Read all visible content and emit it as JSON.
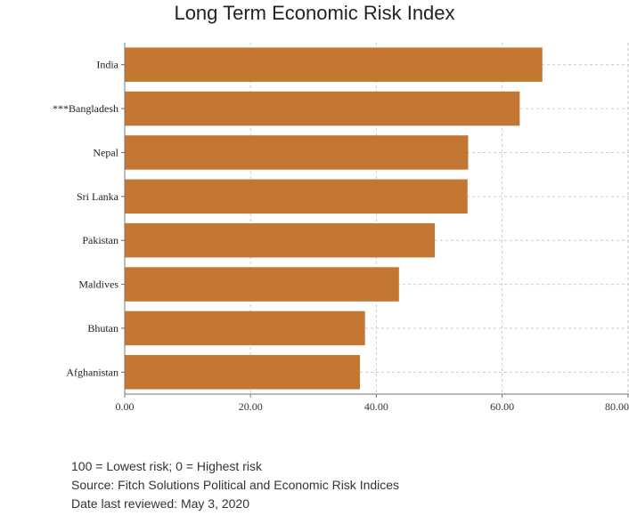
{
  "chart_data": {
    "type": "bar",
    "orientation": "horizontal",
    "title": "Long Term Economic Risk Index",
    "categories": [
      "India",
      "***Bangladesh",
      "Nepal",
      "Sri Lanka",
      "Pakistan",
      "Maldives",
      "Bhutan",
      "Afghanistan"
    ],
    "values": [
      66.4,
      62.8,
      54.6,
      54.5,
      49.3,
      43.6,
      38.2,
      37.4
    ],
    "xlim": [
      0,
      80
    ],
    "x_ticks": [
      "0.00",
      "20.00",
      "40.00",
      "60.00",
      "80.00"
    ],
    "grid": true,
    "bar_color": "#c47733"
  },
  "notes": [
    "100 = Lowest risk; 0 = Highest risk",
    "Source: Fitch Solutions Political and Economic Risk Indices",
    "Date last reviewed: May 3, 2020"
  ]
}
